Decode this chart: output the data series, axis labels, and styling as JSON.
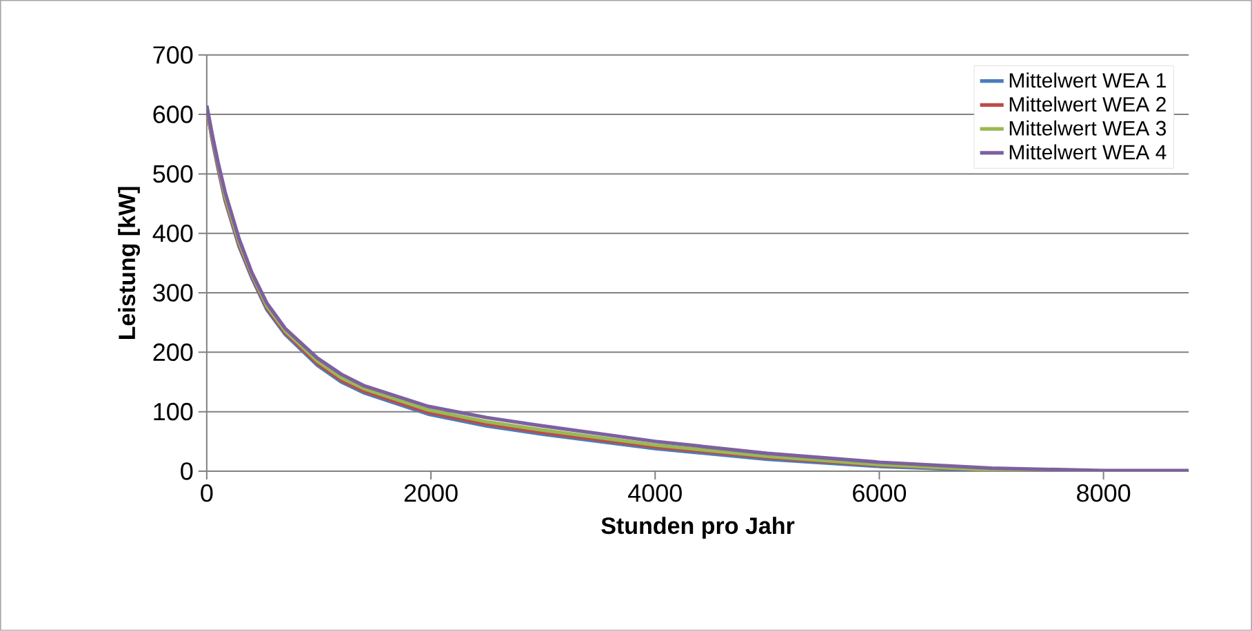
{
  "chart_data": {
    "type": "line",
    "xlabel": "Stunden pro Jahr",
    "ylabel": "Leistung [kW]",
    "xlim": [
      0,
      8760
    ],
    "xticks": [
      0,
      2000,
      4000,
      6000,
      8000
    ],
    "ylim": [
      0,
      700
    ],
    "yticks": [
      0,
      100,
      200,
      300,
      400,
      500,
      600,
      700
    ],
    "grid": "y",
    "legend": "top right",
    "line_style": "solid",
    "marker": "none",
    "series": [
      {
        "name": "Mittelwert WEA 1",
        "color": "#4a7ebb",
        "x": [
          0,
          50,
          100,
          164,
          288,
          400,
          535,
          700,
          988,
          1200,
          1399,
          1975,
          2500,
          3000,
          4000,
          5000,
          6000,
          7000,
          8000,
          8760
        ],
        "values": [
          610,
          556,
          510,
          455,
          378,
          326,
          272,
          230,
          178,
          150,
          132,
          96,
          76,
          62,
          38,
          20,
          8,
          1,
          0,
          0
        ]
      },
      {
        "name": "Mittelwert WEA 2",
        "color": "#be4b48",
        "x": [
          0,
          50,
          100,
          164,
          288,
          400,
          535,
          700,
          988,
          1200,
          1399,
          1975,
          2500,
          3000,
          4000,
          5000,
          6000,
          7000
        ],
        "values": [
          610,
          558,
          513,
          458,
          381,
          329,
          275,
          233,
          181,
          153,
          135,
          99,
          79,
          65,
          41,
          23,
          10,
          2
        ]
      },
      {
        "name": "Mittelwert WEA 3",
        "color": "#98b954",
        "x": [
          0,
          50,
          100,
          164,
          288,
          400,
          535,
          700,
          988,
          1200,
          1399,
          1975,
          2500,
          3000,
          4000,
          5000,
          6000,
          7000,
          8000,
          8760
        ],
        "values": [
          612,
          561,
          517,
          462,
          385,
          332,
          278,
          236,
          185,
          157,
          139,
          103,
          83,
          69,
          44,
          25,
          11,
          2,
          0,
          0
        ]
      },
      {
        "name": "Mittelwert WEA 4",
        "color": "#7d60a0",
        "x": [
          0,
          50,
          100,
          164,
          288,
          400,
          535,
          700,
          988,
          1200,
          1399,
          1975,
          2500,
          3000,
          4000,
          5000,
          6000,
          7000,
          8000,
          8760
        ],
        "values": [
          615,
          565,
          520,
          469,
          391,
          335,
          283,
          240,
          190,
          163,
          144,
          109,
          90,
          76,
          50,
          30,
          15,
          5,
          1,
          1
        ]
      }
    ]
  }
}
